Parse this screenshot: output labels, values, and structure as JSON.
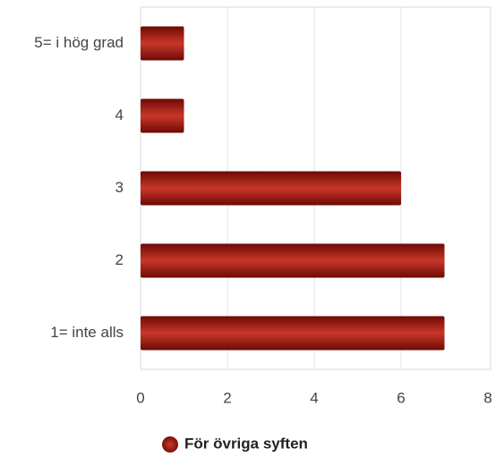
{
  "chart_data": {
    "type": "hbar",
    "categories": [
      "5= i hög grad",
      "4",
      "3",
      "2",
      "1= inte alls"
    ],
    "series": [
      {
        "name": "För övriga syften",
        "color": "#c9372a",
        "values": [
          1,
          1,
          6,
          7,
          7
        ]
      }
    ],
    "xlim": [
      0,
      8
    ],
    "xticks": [
      0,
      2,
      4,
      6,
      8
    ],
    "grid": true,
    "legend": "bottom"
  }
}
